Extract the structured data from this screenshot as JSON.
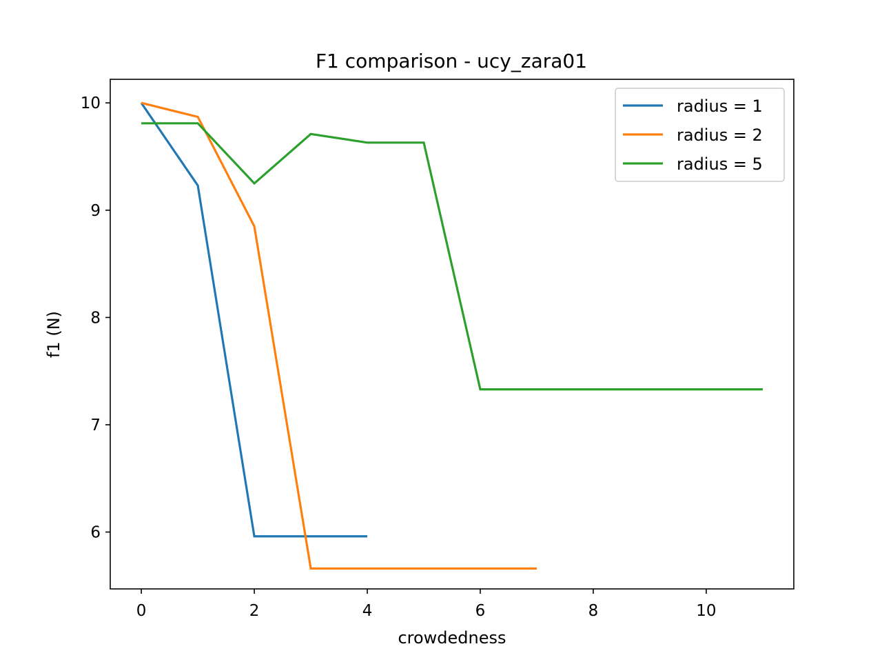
{
  "chart_data": {
    "type": "line",
    "title": "F1 comparison - ucy_zara01",
    "xlabel": "crowdedness",
    "ylabel": "f1 (N)",
    "xlim": [
      -0.55,
      11.55
    ],
    "ylim": [
      5.47,
      10.22
    ],
    "xticks": [
      0,
      2,
      4,
      6,
      8,
      10
    ],
    "yticks": [
      6,
      7,
      8,
      9,
      10
    ],
    "grid": false,
    "legend_position": "top-right",
    "series": [
      {
        "name": "radius = 1",
        "color": "#1f77b4",
        "x": [
          0,
          1,
          2,
          3,
          4
        ],
        "y": [
          10.0,
          9.23,
          5.96,
          5.96,
          5.96
        ]
      },
      {
        "name": "radius = 2",
        "color": "#ff7f0e",
        "x": [
          0,
          1,
          2,
          3,
          4,
          5,
          6,
          7
        ],
        "y": [
          10.0,
          9.87,
          8.85,
          5.66,
          5.66,
          5.66,
          5.66,
          5.66
        ]
      },
      {
        "name": "radius = 5",
        "color": "#2ca02c",
        "x": [
          0,
          1,
          2,
          3,
          4,
          5,
          6,
          7,
          8,
          9,
          10,
          11
        ],
        "y": [
          9.81,
          9.81,
          9.25,
          9.71,
          9.63,
          9.63,
          7.33,
          7.33,
          7.33,
          7.33,
          7.33,
          7.33
        ]
      }
    ]
  }
}
